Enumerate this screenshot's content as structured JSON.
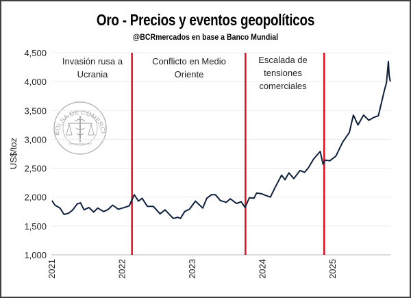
{
  "chart_data": {
    "type": "line",
    "title": "Oro - Precios y eventos geopolíticos",
    "subtitle": "@BCRmercados  en base a Banco Mundial",
    "ylabel": "US$/toz",
    "xlabel": "",
    "ylim": [
      1000,
      4500
    ],
    "yticks": [
      "1,000",
      "1,500",
      "2,000",
      "2,500",
      "3,000",
      "3,500",
      "4,000",
      "4,500"
    ],
    "ytick_values": [
      1000,
      1500,
      2000,
      2500,
      3000,
      3500,
      4000,
      4500
    ],
    "xlim": [
      "2021-01-01",
      "2025-10-31"
    ],
    "xticks": [
      "2021",
      "2022",
      "2023",
      "2024",
      "2025"
    ],
    "grid": "horizontal",
    "line_color": "#0d1f3c",
    "event_color": "#e0101e",
    "events": [
      {
        "date": "2022-02-24",
        "label": [
          "Invasión rusa a",
          "Ucrania"
        ]
      },
      {
        "date": "2023-10-07",
        "label": [
          "Conflicto en Medio",
          "Oriente"
        ]
      },
      {
        "date": "2024-11-20",
        "label": [
          "Escalada de",
          "tensiones",
          "comerciales"
        ]
      }
    ],
    "series": [
      {
        "x": [
          "2021-01-04",
          "2021-01-20",
          "2021-02-15",
          "2021-03-08",
          "2021-03-31",
          "2021-04-20",
          "2021-05-15",
          "2021-06-01",
          "2021-06-20",
          "2021-07-15",
          "2021-08-09",
          "2021-08-30",
          "2021-09-29",
          "2021-10-20",
          "2021-11-16",
          "2021-12-15",
          "2022-01-15",
          "2022-02-10",
          "2022-03-08",
          "2022-03-30",
          "2022-04-18",
          "2022-05-15",
          "2022-06-15",
          "2022-07-20",
          "2022-08-15",
          "2022-09-27",
          "2022-10-20",
          "2022-11-03",
          "2022-11-25",
          "2022-12-20",
          "2023-01-20",
          "2023-02-27",
          "2023-03-20",
          "2023-04-13",
          "2023-05-04",
          "2023-05-30",
          "2023-06-29",
          "2023-07-20",
          "2023-08-21",
          "2023-09-15",
          "2023-10-05",
          "2023-10-27",
          "2023-11-20",
          "2023-12-04",
          "2023-12-28",
          "2024-01-20",
          "2024-02-14",
          "2024-03-08",
          "2024-04-12",
          "2024-04-30",
          "2024-05-20",
          "2024-06-15",
          "2024-07-17",
          "2024-08-10",
          "2024-08-30",
          "2024-09-26",
          "2024-10-30",
          "2024-11-14",
          "2024-11-25",
          "2024-12-20",
          "2025-01-20",
          "2025-02-24",
          "2025-03-31",
          "2025-04-21",
          "2025-05-15",
          "2025-06-13",
          "2025-07-10",
          "2025-08-05",
          "2025-08-29",
          "2025-09-15",
          "2025-09-30",
          "2025-10-10",
          "2025-10-20",
          "2025-10-24",
          "2025-10-30"
        ],
        "y": [
          1940,
          1860,
          1810,
          1700,
          1720,
          1770,
          1880,
          1900,
          1780,
          1820,
          1740,
          1810,
          1750,
          1780,
          1860,
          1790,
          1820,
          1850,
          2040,
          1930,
          1980,
          1840,
          1840,
          1710,
          1780,
          1630,
          1650,
          1630,
          1750,
          1790,
          1930,
          1810,
          1980,
          2040,
          2040,
          1940,
          1910,
          1970,
          1890,
          1920,
          1820,
          1990,
          1980,
          2070,
          2060,
          2030,
          2000,
          2160,
          2380,
          2300,
          2420,
          2320,
          2460,
          2430,
          2510,
          2660,
          2790,
          2570,
          2640,
          2630,
          2710,
          2950,
          3120,
          3420,
          3250,
          3420,
          3330,
          3380,
          3410,
          3650,
          3860,
          3980,
          4350,
          4110,
          4000
        ]
      }
    ]
  },
  "logo": {
    "text": "BOLSA DE COMERCIO DE ROSARIO"
  }
}
